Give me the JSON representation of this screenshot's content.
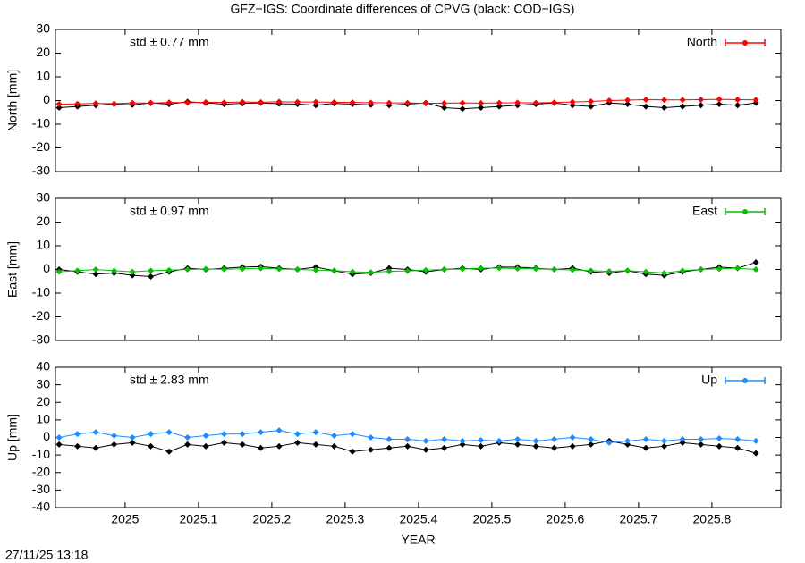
{
  "title": "GFZ−IGS: Coordinate differences of CPVG (black: COD−IGS)",
  "timestamp": "27/11/25 13:18",
  "chart_data": [
    {
      "type": "line",
      "ylabel": "North [mm]",
      "annotation": "std ± 0.77 mm",
      "annotation_color": "#ff0000",
      "xlim": [
        2024.905,
        2025.894
      ],
      "xticks": [
        2025,
        2025.1,
        2025.2,
        2025.3,
        2025.4,
        2025.5,
        2025.6,
        2025.7,
        2025.8
      ],
      "ylim": [
        -30,
        30
      ],
      "yticks": [
        -30,
        -20,
        -10,
        0,
        10,
        20,
        30
      ],
      "legend": "top-right",
      "x": [
        2024.91,
        2024.935,
        2024.96,
        2024.985,
        2025.01,
        2025.035,
        2025.06,
        2025.085,
        2025.11,
        2025.135,
        2025.16,
        2025.185,
        2025.21,
        2025.235,
        2025.26,
        2025.285,
        2025.31,
        2025.335,
        2025.36,
        2025.385,
        2025.41,
        2025.435,
        2025.46,
        2025.485,
        2025.51,
        2025.535,
        2025.56,
        2025.585,
        2025.61,
        2025.635,
        2025.66,
        2025.685,
        2025.71,
        2025.735,
        2025.76,
        2025.785,
        2025.81,
        2025.835,
        2025.86
      ],
      "series": [
        {
          "color": "#000000",
          "values": [
            -3,
            -2.5,
            -2,
            -1.5,
            -1.8,
            -1,
            -1.5,
            -0.5,
            -1,
            -1.5,
            -1.2,
            -1,
            -1.3,
            -1.5,
            -2,
            -1.2,
            -1.5,
            -1.8,
            -2,
            -1.5,
            -1,
            -3,
            -3.5,
            -3,
            -2.5,
            -2,
            -1.5,
            -1,
            -2,
            -2.5,
            -1,
            -1.5,
            -2.5,
            -3,
            -2.5,
            -2,
            -1.5,
            -2,
            -1
          ]
        },
        {
          "name": "North",
          "color": "#ff0000",
          "values": [
            -1.5,
            -1.4,
            -1.2,
            -1.3,
            -1,
            -1.1,
            -0.8,
            -0.9,
            -0.7,
            -0.8,
            -0.6,
            -0.7,
            -0.5,
            -0.6,
            -0.6,
            -0.7,
            -0.8,
            -0.9,
            -1,
            -1,
            -1.2,
            -1.1,
            -1,
            -1.1,
            -1,
            -0.9,
            -1,
            -0.8,
            -0.6,
            -0.4,
            0,
            0.2,
            0.4,
            0.3,
            0.3,
            0.4,
            0.5,
            0.4,
            0.3
          ]
        }
      ]
    },
    {
      "type": "line",
      "ylabel": "East [mm]",
      "annotation": "std ± 0.97 mm",
      "annotation_color": "#00c000",
      "xlim": [
        2024.905,
        2025.894
      ],
      "xticks": [
        2025,
        2025.1,
        2025.2,
        2025.3,
        2025.4,
        2025.5,
        2025.6,
        2025.7,
        2025.8
      ],
      "ylim": [
        -30,
        30
      ],
      "yticks": [
        -30,
        -20,
        -10,
        0,
        10,
        20,
        30
      ],
      "legend": "top-right",
      "x": [
        2024.91,
        2024.935,
        2024.96,
        2024.985,
        2025.01,
        2025.035,
        2025.06,
        2025.085,
        2025.11,
        2025.135,
        2025.16,
        2025.185,
        2025.21,
        2025.235,
        2025.26,
        2025.285,
        2025.31,
        2025.335,
        2025.36,
        2025.385,
        2025.41,
        2025.435,
        2025.46,
        2025.485,
        2025.51,
        2025.535,
        2025.56,
        2025.585,
        2025.61,
        2025.635,
        2025.66,
        2025.685,
        2025.71,
        2025.735,
        2025.76,
        2025.785,
        2025.81,
        2025.835,
        2025.86
      ],
      "series": [
        {
          "color": "#000000",
          "values": [
            0,
            -1,
            -2,
            -1.5,
            -2.5,
            -3,
            -1,
            0.5,
            0,
            0.5,
            1,
            1.2,
            0.5,
            0,
            1,
            -0.5,
            -2,
            -1.5,
            0.5,
            0,
            -1,
            0,
            0.5,
            0,
            1,
            1,
            0.5,
            0,
            0.5,
            -1,
            -1.5,
            -0.5,
            -2,
            -2.5,
            -1,
            0,
            1,
            0.5,
            3
          ]
        },
        {
          "name": "East",
          "color": "#00c000",
          "values": [
            -1,
            -0.5,
            0,
            -0.5,
            -1,
            -0.5,
            -0.3,
            0,
            0.2,
            0.1,
            0.3,
            0.5,
            0.2,
            0,
            -0.3,
            -0.5,
            -1,
            -1.2,
            -0.8,
            -0.6,
            -0.3,
            0,
            0.2,
            0.5,
            0.6,
            0.4,
            0.3,
            0,
            -0.2,
            -0.5,
            -0.8,
            -0.5,
            -1,
            -1.5,
            -0.5,
            0,
            0.3,
            0.5,
            0
          ]
        }
      ]
    },
    {
      "type": "line",
      "ylabel": "Up [mm]",
      "xlabel": "YEAR",
      "annotation": "std ± 2.83 mm",
      "annotation_color": "#1a8cff",
      "xlim": [
        2024.905,
        2025.894
      ],
      "xticks": [
        2025,
        2025.1,
        2025.2,
        2025.3,
        2025.4,
        2025.5,
        2025.6,
        2025.7,
        2025.8
      ],
      "ylim": [
        -40,
        40
      ],
      "yticks": [
        -40,
        -30,
        -20,
        -10,
        0,
        10,
        20,
        30,
        40
      ],
      "legend": "top-right",
      "x": [
        2024.91,
        2024.935,
        2024.96,
        2024.985,
        2025.01,
        2025.035,
        2025.06,
        2025.085,
        2025.11,
        2025.135,
        2025.16,
        2025.185,
        2025.21,
        2025.235,
        2025.26,
        2025.285,
        2025.31,
        2025.335,
        2025.36,
        2025.385,
        2025.41,
        2025.435,
        2025.46,
        2025.485,
        2025.51,
        2025.535,
        2025.56,
        2025.585,
        2025.61,
        2025.635,
        2025.66,
        2025.685,
        2025.71,
        2025.735,
        2025.76,
        2025.785,
        2025.81,
        2025.835,
        2025.86
      ],
      "series": [
        {
          "color": "#000000",
          "values": [
            -4,
            -5,
            -6,
            -4,
            -3,
            -5,
            -8,
            -4,
            -5,
            -3,
            -4,
            -6,
            -5,
            -3,
            -4,
            -5,
            -8,
            -7,
            -6,
            -5,
            -7,
            -6,
            -4,
            -5,
            -3,
            -4,
            -5,
            -6,
            -5,
            -4,
            -2,
            -4,
            -6,
            -5,
            -3,
            -4,
            -5,
            -6,
            -9
          ]
        },
        {
          "name": "Up",
          "color": "#1a8cff",
          "values": [
            0,
            2,
            3,
            1,
            0,
            2,
            3,
            0,
            1,
            2,
            2,
            3,
            4,
            2,
            3,
            1,
            2,
            0,
            -1,
            -1,
            -2,
            -1,
            -2,
            -1.5,
            -2,
            -1,
            -2,
            -1,
            0,
            -1,
            -3,
            -2,
            -1,
            -2,
            -1,
            -1,
            -0.5,
            -1,
            -2
          ]
        }
      ]
    }
  ]
}
